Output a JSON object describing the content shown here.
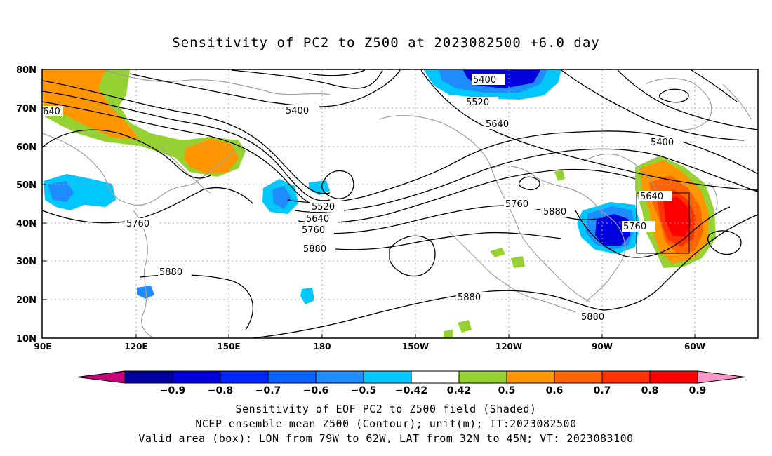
{
  "title": "Sensitivity of PC2 to Z500 at 2023082500 +6.0 day",
  "axes": {
    "lat_ticks": [
      "80N",
      "70N",
      "60N",
      "50N",
      "40N",
      "30N",
      "20N",
      "10N"
    ],
    "lon_ticks": [
      "90E",
      "120E",
      "150E",
      "180",
      "150W",
      "120W",
      "90W",
      "60W"
    ]
  },
  "colorbar": {
    "labels": [
      "-0.9",
      "-0.8",
      "-0.7",
      "-0.6",
      "-0.5",
      "-0.42",
      "0.42",
      "0.5",
      "0.6",
      "0.7",
      "0.8",
      "0.9"
    ],
    "colors": [
      "#c8007a",
      "#0000a0",
      "#0000dc",
      "#0028ff",
      "#0a64ff",
      "#1e8cff",
      "#00c8ff",
      "#ffffff",
      "#96d232",
      "#ff9600",
      "#ff6400",
      "#ff3200",
      "#ff0000",
      "#ff96c8"
    ]
  },
  "contour_labels": [
    "640",
    "5400",
    "5400",
    "5520",
    "5640",
    "5400",
    "5760",
    "5880",
    "5520",
    "5640",
    "5760",
    "5880",
    "5760",
    "5880",
    "5640",
    "5760",
    "5880",
    "5880"
  ],
  "valid_box": {
    "lon_from": "79W",
    "lon_to": "62W",
    "lat_from": "32N",
    "lat_to": "45N"
  },
  "footer": {
    "line1": "Sensitivity of EOF PC2 to Z500 field (Shaded)",
    "line2": "NCEP ensemble mean Z500 (Contour); unit(m); IT:2023082500",
    "line3": "Valid area (box): LON from 79W to 62W, LAT from 32N to 45N; VT: 2023083100"
  }
}
